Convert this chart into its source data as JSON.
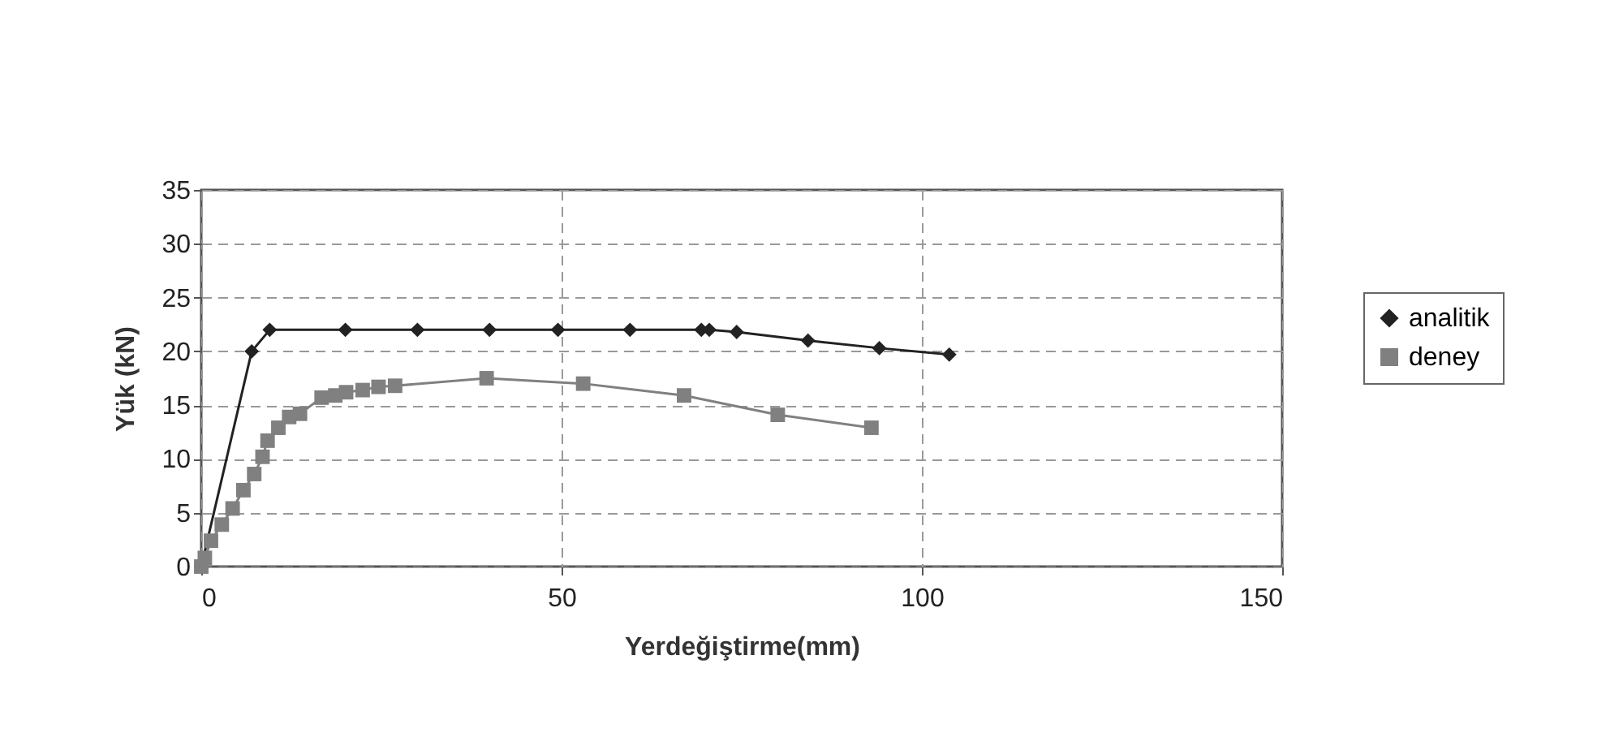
{
  "chart_data": {
    "type": "line",
    "xlabel": "Yerdeğiştirme(mm)",
    "ylabel": "Yük (kN)",
    "xlim": [
      0,
      150
    ],
    "xticks": [
      0,
      50,
      100,
      150
    ],
    "ylim": [
      0,
      35
    ],
    "yticks": [
      0,
      5,
      10,
      15,
      20,
      25,
      30,
      35
    ],
    "grid": true,
    "legend": "right",
    "line_style": "solid",
    "series": [
      {
        "name": "analitik",
        "color": "#222222",
        "marker": "diamond",
        "x": [
          0,
          7,
          9.5,
          20,
          30,
          40,
          49.5,
          59.5,
          69.4,
          70.5,
          74.3,
          84.2,
          94.1,
          103.8
        ],
        "values": [
          0,
          20,
          22,
          22,
          22,
          22,
          22,
          22,
          22,
          22,
          21.8,
          21,
          20.3,
          19.7
        ]
      },
      {
        "name": "deney",
        "color": "#808080",
        "marker": "square",
        "x": [
          0,
          0.5,
          1.35,
          2.85,
          4.35,
          5.85,
          7.35,
          8.5,
          9.2,
          10.7,
          12.2,
          13.7,
          16.7,
          18.6,
          20.1,
          22.4,
          24.6,
          26.9,
          39.6,
          53,
          67,
          80,
          93
        ],
        "values": [
          0,
          0.8,
          2.4,
          3.9,
          5.4,
          7.1,
          8.6,
          10.2,
          11.7,
          12.9,
          13.9,
          14.2,
          15.7,
          15.9,
          16.2,
          16.4,
          16.7,
          16.8,
          17.5,
          17,
          15.9,
          14.1,
          12.9
        ]
      }
    ]
  }
}
